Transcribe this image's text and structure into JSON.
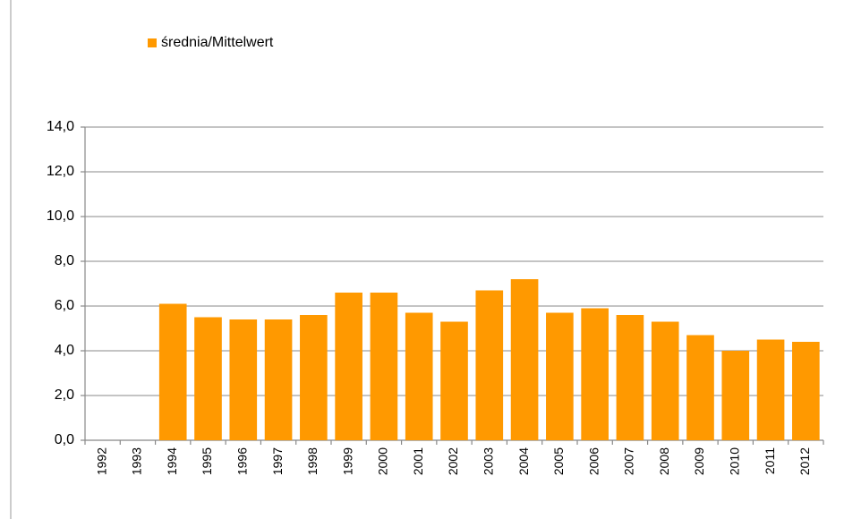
{
  "chart_data": {
    "type": "bar",
    "categories": [
      "1992",
      "1993",
      "1994",
      "1995",
      "1996",
      "1997",
      "1998",
      "1999",
      "2000",
      "2001",
      "2002",
      "2003",
      "2004",
      "2005",
      "2006",
      "2007",
      "2008",
      "2009",
      "2010",
      "2011",
      "2012"
    ],
    "series": [
      {
        "name": "średnia/Mittelwert",
        "color": "#ff9900",
        "values": [
          null,
          null,
          6.1,
          5.5,
          5.4,
          5.4,
          5.6,
          6.6,
          6.6,
          5.7,
          5.3,
          6.7,
          7.2,
          5.7,
          5.9,
          5.6,
          5.3,
          4.7,
          4.0,
          4.5,
          4.4
        ]
      }
    ],
    "ylim": [
      0,
      14
    ],
    "yticks": [
      {
        "value": 0,
        "label": "0,0"
      },
      {
        "value": 2,
        "label": "2,0"
      },
      {
        "value": 4,
        "label": "4,0"
      },
      {
        "value": 6,
        "label": "6,0"
      },
      {
        "value": 8,
        "label": "8,0"
      },
      {
        "value": 10,
        "label": "10,0"
      },
      {
        "value": 12,
        "label": "12,0"
      },
      {
        "value": 14,
        "label": "14,0"
      }
    ],
    "grid": true,
    "legend": "top-left"
  }
}
